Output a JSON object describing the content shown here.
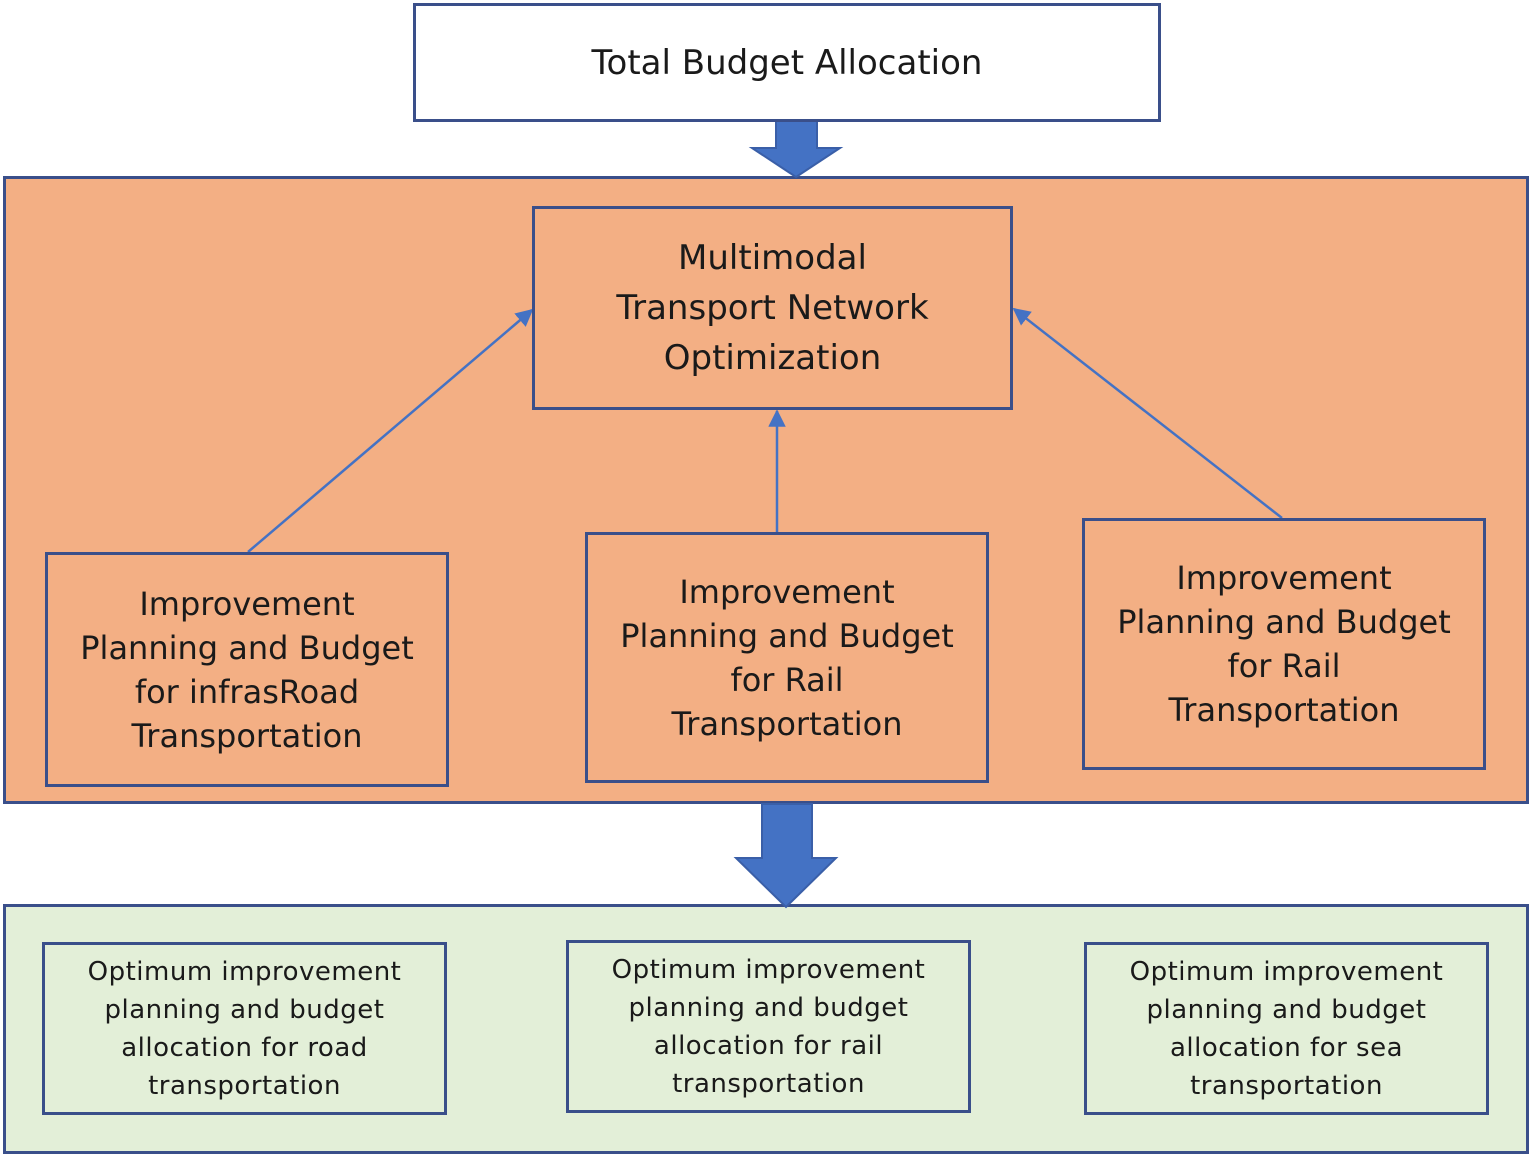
{
  "colors": {
    "border": "#3a4f8a",
    "arrow": "#4472c4",
    "orange_fill": "#f3af84",
    "green_fill": "#e3efd8",
    "top_fill": "#ffffff"
  },
  "top": {
    "label": "Total Budget Allocation"
  },
  "center": {
    "label": "Multimodal\nTransport Network\nOptimization"
  },
  "inputs": [
    {
      "label": "Improvement\nPlanning and Budget\nfor infrasRoad\nTransportation"
    },
    {
      "label": "Improvement\nPlanning and Budget\nfor Rail\nTransportation"
    },
    {
      "label": "Improvement\nPlanning and Budget\nfor Rail\nTransportation"
    }
  ],
  "outputs": [
    {
      "label": "Optimum improvement\nplanning and budget\nallocation for road\ntransportation"
    },
    {
      "label": "Optimum improvement\nplanning and budget\nallocation for rail\ntransportation"
    },
    {
      "label": "Optimum improvement\nplanning and budget\nallocation for sea\ntransportation"
    }
  ]
}
